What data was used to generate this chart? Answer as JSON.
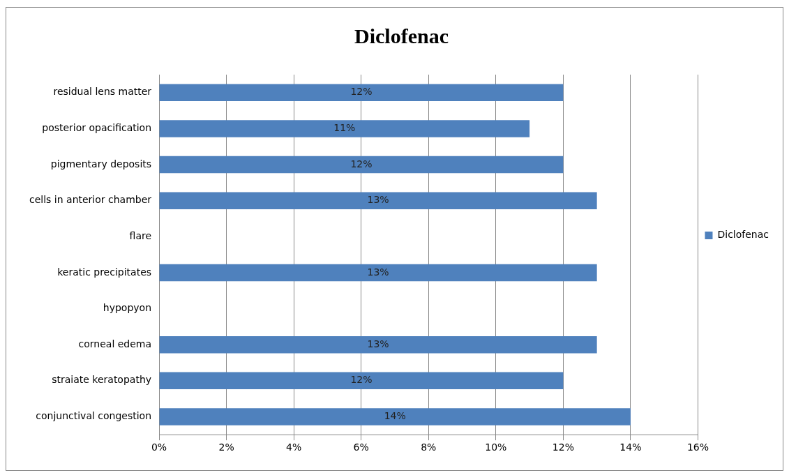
{
  "chart_data": {
    "type": "bar",
    "orientation": "horizontal",
    "title": "Diclofenac",
    "categories": [
      "residual lens matter",
      "posterior opacification",
      "pigmentary deposits",
      "cells in anterior chamber",
      "flare",
      "keratic precipitates",
      "hypopyon",
      "corneal edema",
      "straiate keratopathy",
      "conjunctival congestion"
    ],
    "series": [
      {
        "name": "Diclofenac",
        "color": "#4f81bd",
        "values": [
          12,
          11,
          12,
          13,
          null,
          13,
          null,
          13,
          12,
          14
        ],
        "value_labels": [
          "12%",
          "11%",
          "12%",
          "13%",
          null,
          "13%",
          null,
          "13%",
          "12%",
          "14%"
        ]
      }
    ],
    "xlim": [
      0,
      16
    ],
    "xticks": [
      {
        "value": 0,
        "label": "0%"
      },
      {
        "value": 2,
        "label": "2%"
      },
      {
        "value": 4,
        "label": "4%"
      },
      {
        "value": 6,
        "label": "6%"
      },
      {
        "value": 8,
        "label": "8%"
      },
      {
        "value": 10,
        "label": "10%"
      },
      {
        "value": 12,
        "label": "12%"
      },
      {
        "value": 14,
        "label": "14%"
      },
      {
        "value": 16,
        "label": "16%"
      }
    ],
    "grid": "x",
    "legend": "right"
  }
}
